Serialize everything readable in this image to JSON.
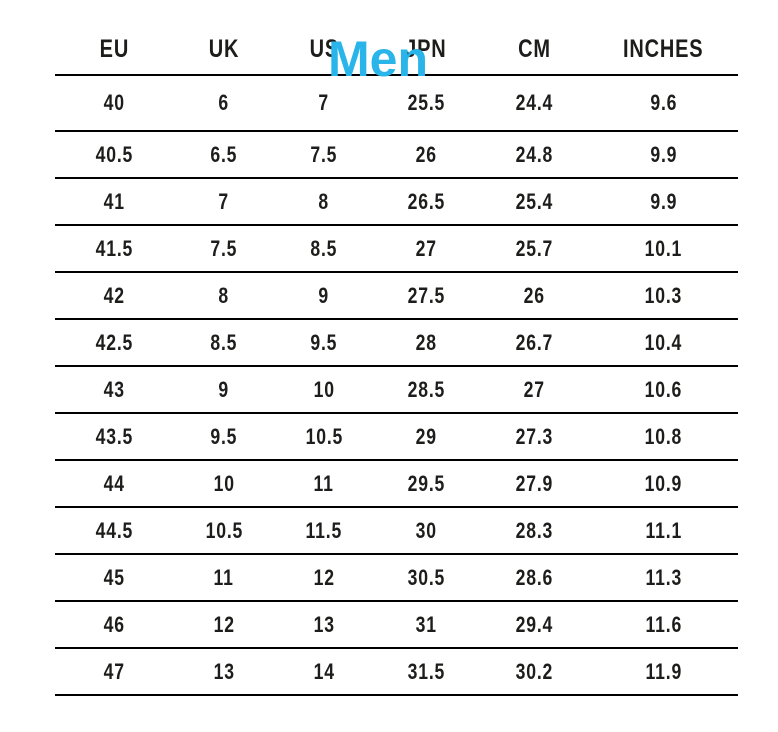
{
  "overlay": {
    "label": "Men",
    "color": "#29b5ea"
  },
  "table": {
    "columns": [
      "EU",
      "UK",
      "US",
      "JPN",
      "CM",
      "INCHES"
    ],
    "rows": [
      [
        "40",
        "6",
        "7",
        "25.5",
        "24.4",
        "9.6"
      ],
      [
        "40.5",
        "6.5",
        "7.5",
        "26",
        "24.8",
        "9.9"
      ],
      [
        "41",
        "7",
        "8",
        "26.5",
        "25.4",
        "9.9"
      ],
      [
        "41.5",
        "7.5",
        "8.5",
        "27",
        "25.7",
        "10.1"
      ],
      [
        "42",
        "8",
        "9",
        "27.5",
        "26",
        "10.3"
      ],
      [
        "42.5",
        "8.5",
        "9.5",
        "28",
        "26.7",
        "10.4"
      ],
      [
        "43",
        "9",
        "10",
        "28.5",
        "27",
        "10.6"
      ],
      [
        "43.5",
        "9.5",
        "10.5",
        "29",
        "27.3",
        "10.8"
      ],
      [
        "44",
        "10",
        "11",
        "29.5",
        "27.9",
        "10.9"
      ],
      [
        "44.5",
        "10.5",
        "11.5",
        "30",
        "28.3",
        "11.1"
      ],
      [
        "45",
        "11",
        "12",
        "30.5",
        "28.6",
        "11.3"
      ],
      [
        "46",
        "12",
        "13",
        "31",
        "29.4",
        "11.6"
      ],
      [
        "47",
        "13",
        "14",
        "31.5",
        "30.2",
        "11.9"
      ]
    ]
  },
  "chart_data": {
    "type": "table",
    "title": "Men",
    "columns": [
      "EU",
      "UK",
      "US",
      "JPN",
      "CM",
      "INCHES"
    ],
    "rows": [
      [
        40,
        6,
        7,
        25.5,
        24.4,
        9.6
      ],
      [
        40.5,
        6.5,
        7.5,
        26,
        24.8,
        9.9
      ],
      [
        41,
        7,
        8,
        26.5,
        25.4,
        9.9
      ],
      [
        41.5,
        7.5,
        8.5,
        27,
        25.7,
        10.1
      ],
      [
        42,
        8,
        9,
        27.5,
        26,
        10.3
      ],
      [
        42.5,
        8.5,
        9.5,
        28,
        26.7,
        10.4
      ],
      [
        43,
        9,
        10,
        28.5,
        27,
        10.6
      ],
      [
        43.5,
        9.5,
        10.5,
        29,
        27.3,
        10.8
      ],
      [
        44,
        10,
        11,
        29.5,
        27.9,
        10.9
      ],
      [
        44.5,
        10.5,
        11.5,
        30,
        28.3,
        11.1
      ],
      [
        45,
        11,
        12,
        30.5,
        28.6,
        11.3
      ],
      [
        46,
        12,
        13,
        31,
        29.4,
        11.6
      ],
      [
        47,
        13,
        14,
        31.5,
        30.2,
        11.9
      ]
    ],
    "layout_hints": {
      "horizontal_rules_only": true,
      "title_overlaps_header_rule": true,
      "title_color": "#29b5ea"
    }
  }
}
